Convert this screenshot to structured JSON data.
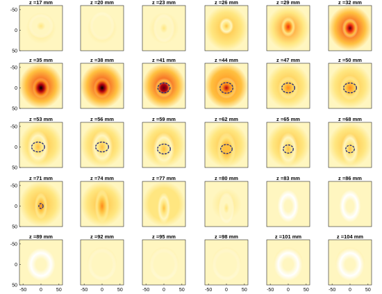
{
  "chart_data": {
    "type": "heatmap",
    "layout": {
      "rows": 5,
      "cols": 6
    },
    "xlim": [
      -60,
      60
    ],
    "ylim": [
      -60,
      50
    ],
    "y_reversed": true,
    "xticks": [
      -50,
      0,
      50
    ],
    "yticks": [
      -50,
      0,
      50
    ],
    "colormap": [
      "#ffffff",
      "#fff6c0",
      "#ffe680",
      "#ffc040",
      "#ff8a1a",
      "#f03010",
      "#b00010",
      "#5a0010",
      "#000000"
    ],
    "contour_color": "#2a2f7a",
    "panels": [
      {
        "title": "z =17 mm",
        "intensity": 0.22,
        "cx": 0,
        "cy": -10,
        "rx": 35,
        "ry": 30,
        "contour": false
      },
      {
        "title": "z =20 mm",
        "intensity": 0.18,
        "cx": 0,
        "cy": -10,
        "rx": 35,
        "ry": 35,
        "contour": false
      },
      {
        "title": "z =23 mm",
        "intensity": 0.2,
        "cx": 0,
        "cy": -5,
        "rx": 30,
        "ry": 35,
        "contour": false
      },
      {
        "title": "z =26 mm",
        "intensity": 0.38,
        "cx": 0,
        "cy": -10,
        "rx": 20,
        "ry": 20,
        "contour": false
      },
      {
        "title": "z =29 mm",
        "intensity": 0.62,
        "cx": 0,
        "cy": -8,
        "rx": 20,
        "ry": 24,
        "contour": false
      },
      {
        "title": "z =32 mm",
        "intensity": 0.82,
        "cx": 0,
        "cy": -5,
        "rx": 22,
        "ry": 24,
        "contour": false
      },
      {
        "title": "z =35 mm",
        "intensity": 0.98,
        "cx": 0,
        "cy": 0,
        "rx": 24,
        "ry": 25,
        "contour": false
      },
      {
        "title": "z =38 mm",
        "intensity": 1.0,
        "cx": 0,
        "cy": 0,
        "rx": 24,
        "ry": 25,
        "contour": false
      },
      {
        "title": "z =41 mm",
        "intensity": 0.9,
        "cx": 0,
        "cy": 0,
        "rx": 25,
        "ry": 24,
        "contour": true,
        "crx": 17,
        "cry": 12
      },
      {
        "title": "z =44 mm",
        "intensity": 0.72,
        "cx": 0,
        "cy": 0,
        "rx": 28,
        "ry": 26,
        "contour": true,
        "crx": 18,
        "cry": 13
      },
      {
        "title": "z =47 mm",
        "intensity": 0.55,
        "cx": 0,
        "cy": 0,
        "rx": 28,
        "ry": 28,
        "contour": true,
        "crx": 18,
        "cry": 12
      },
      {
        "title": "z =50 mm",
        "intensity": 0.52,
        "cx": 0,
        "cy": 0,
        "rx": 28,
        "ry": 30,
        "contour": true,
        "crx": 18,
        "cry": 12
      },
      {
        "title": "z =53 mm",
        "intensity": 0.38,
        "cx": -8,
        "cy": 0,
        "rx": 30,
        "ry": 40,
        "contour": true,
        "crx": 18,
        "cry": 12
      },
      {
        "title": "z =56 mm",
        "intensity": 0.36,
        "cx": 0,
        "cy": 0,
        "rx": 30,
        "ry": 40,
        "contour": true,
        "crx": 18,
        "cry": 12
      },
      {
        "title": "z =59 mm",
        "intensity": 0.36,
        "cx": 0,
        "cy": 5,
        "rx": 30,
        "ry": 40,
        "contour": true,
        "crx": 18,
        "cry": 12
      },
      {
        "title": "z =62 mm",
        "intensity": 0.42,
        "cx": 0,
        "cy": 5,
        "rx": 26,
        "ry": 40,
        "contour": true,
        "crx": 16,
        "cry": 11
      },
      {
        "title": "z =65 mm",
        "intensity": 0.4,
        "cx": 0,
        "cy": 5,
        "rx": 26,
        "ry": 40,
        "contour": true,
        "crx": 14,
        "cry": 10
      },
      {
        "title": "z =68 mm",
        "intensity": 0.4,
        "cx": 0,
        "cy": 5,
        "rx": 24,
        "ry": 38,
        "contour": true,
        "crx": 12,
        "cry": 9
      },
      {
        "title": "z =71 mm",
        "intensity": 0.52,
        "cx": 0,
        "cy": 0,
        "rx": 18,
        "ry": 32,
        "contour": true,
        "crx": 6,
        "cry": 6
      },
      {
        "title": "z =74 mm",
        "intensity": 0.46,
        "cx": 0,
        "cy": 0,
        "rx": 20,
        "ry": 40,
        "contour": false
      },
      {
        "title": "z =77 mm",
        "intensity": 0.34,
        "cx": 0,
        "cy": 5,
        "rx": 18,
        "ry": 38,
        "contour": false
      },
      {
        "title": "z =80 mm",
        "intensity": 0.2,
        "cx": 0,
        "cy": 5,
        "rx": 22,
        "ry": 38,
        "contour": false
      },
      {
        "title": "z =83 mm",
        "intensity": 0.12,
        "cx": 0,
        "cy": 0,
        "rx": 30,
        "ry": 40,
        "contour": false
      },
      {
        "title": "z =86 mm",
        "intensity": 0.1,
        "cx": 0,
        "cy": 0,
        "rx": 30,
        "ry": 40,
        "contour": false
      },
      {
        "title": "z =89 mm",
        "intensity": 0.12,
        "cx": 0,
        "cy": 0,
        "rx": 40,
        "ry": 40,
        "contour": false
      },
      {
        "title": "z =92 mm",
        "intensity": 0.14,
        "cx": 0,
        "cy": 0,
        "rx": 40,
        "ry": 40,
        "contour": false
      },
      {
        "title": "z =95 mm",
        "intensity": 0.15,
        "cx": 0,
        "cy": 0,
        "rx": 40,
        "ry": 40,
        "contour": false
      },
      {
        "title": "z =98 mm",
        "intensity": 0.14,
        "cx": 0,
        "cy": 0,
        "rx": 40,
        "ry": 40,
        "contour": false
      },
      {
        "title": "z =101 mm",
        "intensity": 0.13,
        "cx": 0,
        "cy": 0,
        "rx": 40,
        "ry": 40,
        "contour": false
      },
      {
        "title": "z =104 mm",
        "intensity": 0.13,
        "cx": 0,
        "cy": 0,
        "rx": 40,
        "ry": 40,
        "contour": false
      }
    ]
  }
}
